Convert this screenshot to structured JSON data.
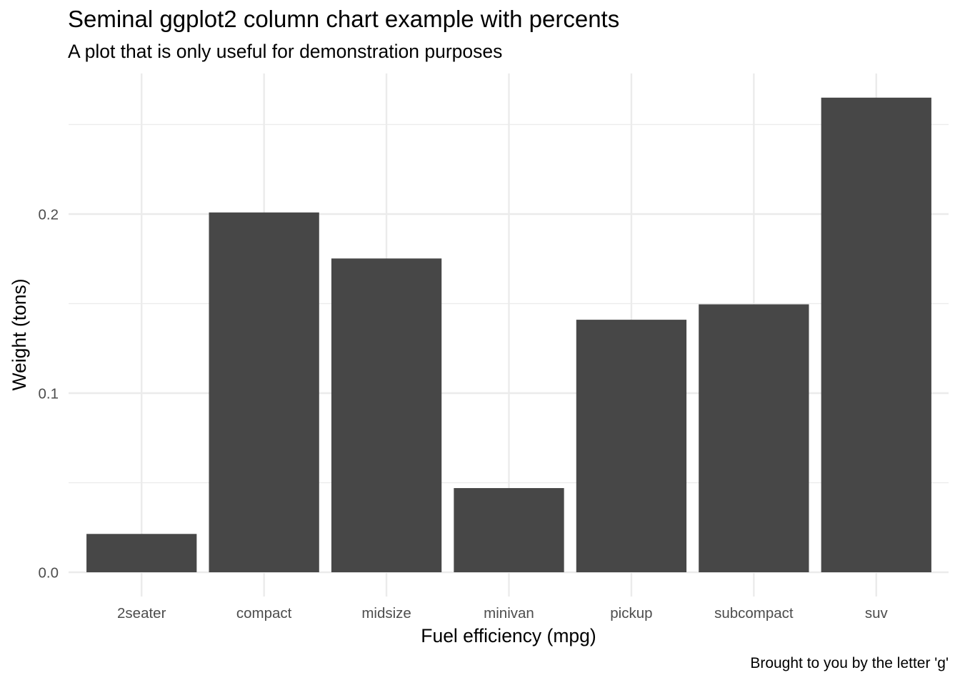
{
  "chart_data": {
    "type": "bar",
    "title": "Seminal ggplot2 column chart example with percents",
    "subtitle": "A plot that is only useful for demonstration purposes",
    "caption": "Brought to you by the letter 'g'",
    "xlabel": "Fuel efficiency (mpg)",
    "ylabel": "Weight (tons)",
    "categories": [
      "2seater",
      "compact",
      "midsize",
      "minivan",
      "pickup",
      "subcompact",
      "suv"
    ],
    "values": [
      0.0214,
      0.2009,
      0.1752,
      0.047,
      0.141,
      0.1496,
      0.265
    ],
    "ylim": [
      0,
      0.278
    ],
    "yticks": [
      0.0,
      0.1,
      0.2
    ],
    "ytick_labels": [
      "0.0",
      "0.1",
      "0.2"
    ],
    "y_minor_ticks": [
      0.05,
      0.15,
      0.25
    ],
    "grid": true,
    "legend": "none",
    "bar_color": "#474747",
    "grid_color": "#ebebeb"
  }
}
